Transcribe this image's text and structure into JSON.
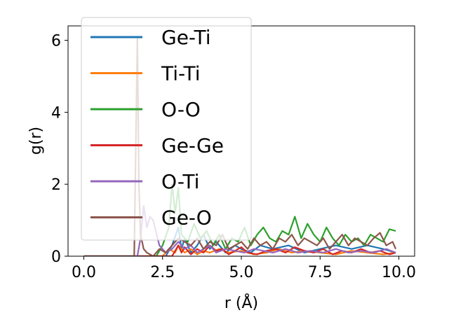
{
  "chart_data": {
    "type": "line",
    "xlabel": "r (Å)",
    "ylabel": "g(r)",
    "xlim": [
      -0.5,
      10.5
    ],
    "ylim": [
      0,
      6.4
    ],
    "xticks": [
      0.0,
      2.5,
      5.0,
      7.5,
      10.0
    ],
    "xtick_labels": [
      "0.0",
      "2.5",
      "5.0",
      "7.5",
      "10.0"
    ],
    "yticks": [
      0,
      2,
      4,
      6
    ],
    "ytick_labels": [
      "0",
      "2",
      "4",
      "6"
    ],
    "legend_position": "top-left",
    "series": [
      {
        "name": "Ge-Ti",
        "color": "#1f77b4",
        "x": [
          0,
          1.8,
          1.9,
          2.0,
          2.6,
          2.8,
          3.0,
          3.1,
          3.2,
          3.4,
          3.6,
          3.8,
          4.0,
          4.2,
          4.5,
          4.8,
          5.0,
          5.3,
          5.6,
          6.0,
          6.5,
          7.0,
          7.5,
          8.0,
          8.5,
          9.0,
          9.5,
          9.9
        ],
        "y": [
          0,
          0,
          0,
          0,
          0,
          0.3,
          0.8,
          0.2,
          0.5,
          0.1,
          0.3,
          0.6,
          0.2,
          0.4,
          0.1,
          0.3,
          0.2,
          0.1,
          0.3,
          0.2,
          0.3,
          0.1,
          0.2,
          0.3,
          0.2,
          0.3,
          0.2,
          0.1
        ]
      },
      {
        "name": "Ti-Ti",
        "color": "#ff7f0e",
        "x": [
          0,
          2.5,
          2.7,
          2.9,
          3.0,
          3.2,
          3.4,
          3.6,
          3.8,
          4.0,
          4.3,
          4.6,
          5.0,
          5.4,
          5.8,
          6.2,
          6.6,
          7.0,
          7.5,
          8.0,
          8.5,
          9.0,
          9.5,
          9.9
        ],
        "y": [
          0,
          0,
          0.2,
          0.1,
          0.3,
          0.1,
          0.2,
          0.05,
          0.15,
          0.1,
          0.2,
          0.1,
          0.15,
          0.05,
          0.1,
          0.2,
          0.1,
          0.15,
          0.1,
          0.05,
          0.15,
          0.1,
          0.05,
          0.1
        ]
      },
      {
        "name": "O-O",
        "color": "#2ca02c",
        "x": [
          0,
          2.3,
          2.5,
          2.7,
          2.8,
          2.9,
          3.0,
          3.1,
          3.3,
          3.5,
          3.7,
          3.9,
          4.1,
          4.3,
          4.5,
          4.7,
          4.9,
          5.1,
          5.3,
          5.5,
          5.7,
          5.9,
          6.1,
          6.3,
          6.5,
          6.7,
          6.9,
          7.1,
          7.3,
          7.5,
          7.7,
          7.9,
          8.1,
          8.3,
          8.5,
          8.7,
          8.9,
          9.1,
          9.3,
          9.5,
          9.7,
          9.9
        ],
        "y": [
          0,
          0,
          0.3,
          0.8,
          2.0,
          1.2,
          1.9,
          0.6,
          0.4,
          0.9,
          0.5,
          0.7,
          0.3,
          0.6,
          0.2,
          0.5,
          0.4,
          0.8,
          0.3,
          0.6,
          0.8,
          0.5,
          0.4,
          0.7,
          0.6,
          1.1,
          0.5,
          0.9,
          0.6,
          0.4,
          0.8,
          0.5,
          0.3,
          0.6,
          0.4,
          0.5,
          0.3,
          0.6,
          0.5,
          0.4,
          0.75,
          0.7
        ]
      },
      {
        "name": "Ge-Ge",
        "color": "#d62728",
        "x": [
          0,
          2.8,
          3.0,
          3.1,
          3.2,
          3.4,
          3.6,
          3.8,
          4.0,
          4.2,
          4.4,
          4.6,
          4.8,
          5.0,
          5.2,
          5.5,
          5.8,
          6.1,
          6.4,
          6.7,
          7.0,
          7.3,
          7.6,
          7.9,
          8.2,
          8.5,
          8.8,
          9.1,
          9.4,
          9.7,
          9.9
        ],
        "y": [
          0,
          0,
          0.3,
          0.1,
          0.25,
          0.05,
          0.2,
          0.1,
          0.3,
          0.15,
          0.2,
          0.05,
          0.15,
          0.25,
          0.1,
          0.05,
          0.15,
          0.2,
          0.1,
          0.25,
          0.15,
          0.1,
          0.2,
          0.05,
          0.15,
          0.1,
          0.2,
          0.1,
          0.15,
          0.05,
          0.1
        ]
      },
      {
        "name": "O-Ti",
        "color": "#9467bd",
        "x": [
          0,
          1.7,
          1.8,
          1.9,
          2.0,
          2.1,
          2.2,
          2.4,
          2.6,
          2.8,
          3.0,
          3.2,
          3.4,
          3.6,
          3.8,
          4.0,
          4.2,
          4.5,
          4.8,
          5.1,
          5.4,
          5.7,
          6.0,
          6.4,
          6.8,
          7.2,
          7.6,
          8.0,
          8.4,
          8.8,
          9.2,
          9.6,
          9.9
        ],
        "y": [
          0,
          0,
          0.5,
          1.4,
          0.8,
          1.1,
          1.0,
          0.3,
          0.1,
          0.2,
          0.4,
          0.2,
          0.3,
          0.1,
          0.2,
          0.3,
          0.1,
          0.2,
          0.15,
          0.1,
          0.2,
          0.15,
          0.1,
          0.2,
          0.1,
          0.15,
          0.1,
          0.2,
          0.1,
          0.15,
          0.1,
          0.2,
          0.1
        ]
      },
      {
        "name": "Ge-O",
        "color": "#8c564b",
        "x": [
          0,
          1.6,
          1.7,
          1.75,
          1.8,
          1.9,
          2.0,
          2.2,
          2.4,
          2.6,
          2.8,
          3.0,
          3.2,
          3.4,
          3.6,
          3.8,
          4.0,
          4.2,
          4.4,
          4.6,
          4.8,
          5.0,
          5.2,
          5.4,
          5.6,
          5.8,
          6.0,
          6.2,
          6.4,
          6.6,
          6.8,
          7.0,
          7.2,
          7.4,
          7.6,
          7.8,
          8.0,
          8.2,
          8.4,
          8.6,
          8.8,
          9.0,
          9.2,
          9.4,
          9.6,
          9.8,
          9.9
        ],
        "y": [
          0,
          0,
          6.1,
          2.0,
          0.6,
          0.2,
          0.1,
          0.0,
          0.2,
          0.1,
          0.3,
          0.5,
          0.4,
          0.3,
          0.5,
          0.2,
          0.4,
          0.3,
          0.6,
          0.2,
          0.3,
          0.4,
          0.2,
          0.5,
          0.3,
          0.4,
          0.2,
          0.5,
          0.4,
          0.6,
          0.3,
          0.5,
          0.4,
          0.3,
          0.5,
          0.2,
          0.4,
          0.6,
          0.3,
          0.5,
          0.4,
          0.3,
          0.5,
          0.65,
          0.3,
          0.4,
          0.2
        ]
      }
    ]
  }
}
